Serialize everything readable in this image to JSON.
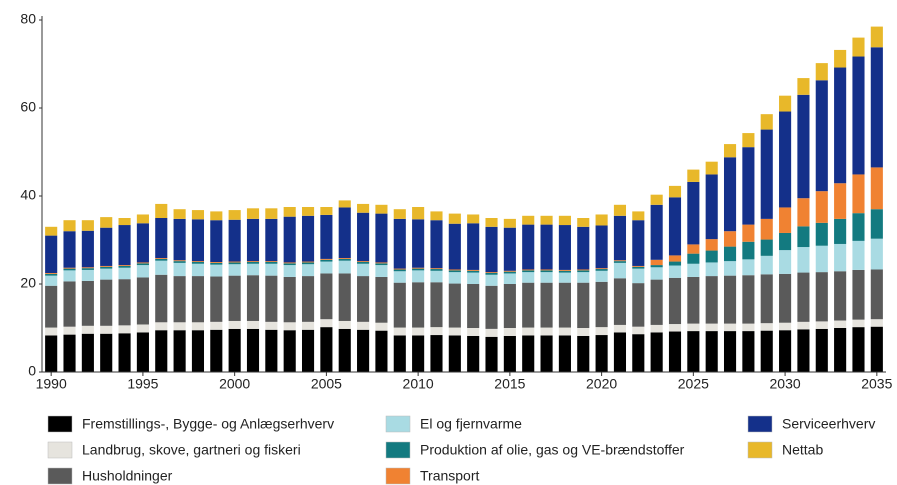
{
  "chart_data": {
    "type": "stacked_bar",
    "x": [
      1990,
      1991,
      1992,
      1993,
      1994,
      1995,
      1996,
      1997,
      1998,
      1999,
      2000,
      2001,
      2002,
      2003,
      2004,
      2005,
      2006,
      2007,
      2008,
      2009,
      2010,
      2011,
      2012,
      2013,
      2014,
      2015,
      2016,
      2017,
      2018,
      2019,
      2020,
      2021,
      2022,
      2023,
      2024,
      2025,
      2026,
      2027,
      2028,
      2029,
      2030,
      2031,
      2032,
      2033,
      2034,
      2035
    ],
    "xlim": [
      1989.5,
      2035.5
    ],
    "xticks": [
      1990,
      1995,
      2000,
      2005,
      2010,
      2015,
      2020,
      2025,
      2030,
      2035
    ],
    "ylim": [
      0,
      80
    ],
    "yticks": [
      0,
      20,
      40,
      60,
      80
    ],
    "grid": false,
    "series": [
      {
        "name": "Fremstillings-, Bygge- og Anlægserhverv",
        "color": "#000000",
        "values": [
          8.3,
          8.5,
          8.7,
          8.7,
          8.8,
          9.0,
          9.5,
          9.5,
          9.5,
          9.6,
          9.8,
          9.8,
          9.6,
          9.5,
          9.6,
          10.2,
          9.8,
          9.6,
          9.4,
          8.3,
          8.3,
          8.4,
          8.3,
          8.2,
          8.0,
          8.2,
          8.3,
          8.3,
          8.3,
          8.2,
          8.4,
          9.0,
          8.6,
          9.0,
          9.2,
          9.3,
          9.3,
          9.3,
          9.3,
          9.4,
          9.5,
          9.7,
          9.8,
          10.0,
          10.2,
          10.3
        ]
      },
      {
        "name": "Landbrug, skove, gartneri og fiskeri",
        "color": "#e6e4de",
        "values": [
          1.8,
          1.8,
          1.8,
          1.8,
          1.8,
          1.8,
          1.8,
          1.8,
          1.8,
          1.8,
          1.8,
          1.8,
          1.8,
          1.8,
          1.8,
          1.8,
          1.8,
          1.8,
          1.8,
          1.8,
          1.8,
          1.8,
          1.8,
          1.8,
          1.8,
          1.8,
          1.8,
          1.8,
          1.8,
          1.8,
          1.8,
          1.7,
          1.7,
          1.7,
          1.7,
          1.7,
          1.7,
          1.7,
          1.7,
          1.7,
          1.7,
          1.7,
          1.7,
          1.7,
          1.7,
          1.7
        ]
      },
      {
        "name": "Husholdninger",
        "color": "#5a5a5a",
        "values": [
          9.5,
          10.3,
          10.2,
          10.5,
          10.5,
          10.7,
          10.8,
          10.5,
          10.5,
          10.3,
          10.3,
          10.4,
          10.5,
          10.3,
          10.4,
          10.4,
          10.8,
          10.4,
          10.4,
          10.2,
          10.3,
          10.2,
          10.0,
          10.0,
          9.8,
          10.0,
          10.2,
          10.2,
          10.2,
          10.3,
          10.3,
          10.6,
          9.9,
          10.3,
          10.5,
          10.6,
          10.8,
          10.9,
          11.0,
          11.1,
          11.1,
          11.2,
          11.2,
          11.2,
          11.3,
          11.3
        ]
      },
      {
        "name": "El og fjernvarme",
        "color": "#a9dbe3",
        "values": [
          2.3,
          2.5,
          2.5,
          2.5,
          2.6,
          2.8,
          3.2,
          3.0,
          2.8,
          2.7,
          2.6,
          2.6,
          2.7,
          2.7,
          2.7,
          2.7,
          2.9,
          2.8,
          2.7,
          2.6,
          2.7,
          2.6,
          2.6,
          2.6,
          2.5,
          2.4,
          2.4,
          2.4,
          2.3,
          2.4,
          2.5,
          3.5,
          3.3,
          2.8,
          2.8,
          3.0,
          3.1,
          3.3,
          3.6,
          4.2,
          5.4,
          5.8,
          6.0,
          6.2,
          6.6,
          7.0
        ]
      },
      {
        "name": "Produktion af olie, gas og VE-brændstoffer",
        "color": "#137a80",
        "values": [
          0.4,
          0.4,
          0.4,
          0.4,
          0.4,
          0.4,
          0.4,
          0.4,
          0.4,
          0.4,
          0.4,
          0.4,
          0.4,
          0.4,
          0.4,
          0.4,
          0.4,
          0.4,
          0.4,
          0.4,
          0.4,
          0.4,
          0.4,
          0.4,
          0.4,
          0.4,
          0.4,
          0.4,
          0.4,
          0.4,
          0.4,
          0.4,
          0.4,
          0.5,
          0.9,
          2.3,
          2.7,
          3.3,
          4.0,
          3.7,
          3.9,
          4.7,
          5.2,
          5.7,
          6.3,
          6.7
        ]
      },
      {
        "name": "Transport",
        "color": "#f08232",
        "values": [
          0.2,
          0.2,
          0.2,
          0.2,
          0.2,
          0.2,
          0.2,
          0.2,
          0.2,
          0.2,
          0.2,
          0.2,
          0.2,
          0.2,
          0.2,
          0.2,
          0.2,
          0.2,
          0.2,
          0.2,
          0.2,
          0.2,
          0.2,
          0.2,
          0.2,
          0.2,
          0.2,
          0.2,
          0.2,
          0.2,
          0.2,
          0.2,
          0.2,
          1.2,
          1.4,
          2.1,
          2.6,
          3.5,
          3.9,
          4.7,
          5.8,
          6.4,
          7.2,
          8.1,
          8.8,
          9.5
        ]
      },
      {
        "name": "Serviceerhverv",
        "color": "#14308a",
        "values": [
          8.5,
          8.3,
          8.3,
          8.7,
          9.1,
          8.9,
          9.1,
          9.4,
          9.5,
          9.5,
          9.5,
          9.6,
          9.6,
          10.4,
          10.4,
          10.0,
          11.5,
          11.0,
          11.1,
          11.3,
          11.0,
          10.9,
          10.4,
          10.6,
          10.3,
          9.8,
          10.2,
          10.2,
          10.2,
          9.7,
          9.7,
          10.1,
          10.4,
          12.5,
          13.2,
          14.2,
          14.7,
          16.8,
          17.6,
          20.3,
          21.8,
          23.5,
          25.2,
          26.3,
          26.8,
          27.3
        ]
      },
      {
        "name": "Nettab",
        "color": "#e8b82a",
        "values": [
          2.0,
          2.5,
          2.4,
          2.4,
          1.6,
          2.0,
          3.2,
          2.2,
          2.1,
          2.0,
          2.2,
          2.4,
          2.4,
          2.2,
          2.0,
          1.8,
          1.6,
          2.0,
          2.0,
          2.2,
          2.8,
          2.0,
          2.3,
          2.0,
          2.0,
          2.0,
          2.0,
          2.0,
          2.1,
          2.0,
          2.5,
          2.5,
          2.0,
          2.3,
          2.6,
          2.8,
          2.9,
          3.0,
          3.2,
          3.5,
          3.6,
          3.8,
          3.9,
          4.0,
          4.3,
          4.7
        ]
      }
    ]
  }
}
